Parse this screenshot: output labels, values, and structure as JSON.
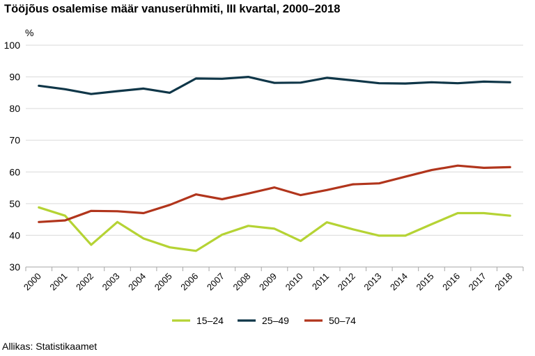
{
  "chart_data": {
    "type": "line",
    "title": "Tööjõus osalemise määr vanuserühmiti, III kvartal, 2000–2018",
    "ylabel": "%",
    "xlabel": "",
    "ylim": [
      30,
      100
    ],
    "yticks": [
      30,
      40,
      50,
      60,
      70,
      80,
      90,
      100
    ],
    "grid": true,
    "legend": "bottom",
    "x": [
      "2000",
      "2001",
      "2002",
      "2003",
      "2004",
      "2005",
      "2006",
      "2007",
      "2008",
      "2009",
      "2010",
      "2011",
      "2012",
      "2013",
      "2014",
      "2015",
      "2016",
      "2017",
      "2018"
    ],
    "series": [
      {
        "name": "15–24",
        "color": "#b5d334",
        "values": [
          48.8,
          46.2,
          37.0,
          44.2,
          39.0,
          36.2,
          35.1,
          40.2,
          43.0,
          42.1,
          38.2,
          44.1,
          41.9,
          39.9,
          39.9,
          43.5,
          47.0,
          47.0,
          46.2
        ]
      },
      {
        "name": "25–49",
        "color": "#0f3648",
        "values": [
          87.2,
          86.1,
          84.6,
          85.5,
          86.3,
          85.0,
          89.5,
          89.4,
          90.0,
          88.1,
          88.2,
          89.7,
          88.9,
          88.0,
          87.9,
          88.3,
          88.0,
          88.5,
          88.3
        ]
      },
      {
        "name": "50–74",
        "color": "#b1351c",
        "values": [
          44.2,
          44.7,
          47.7,
          47.6,
          47.0,
          49.6,
          52.9,
          51.4,
          53.2,
          55.1,
          52.7,
          54.3,
          56.1,
          56.4,
          58.5,
          60.6,
          62.0,
          61.3,
          61.5
        ]
      }
    ]
  },
  "source": "Allikas: Statistikaamet"
}
